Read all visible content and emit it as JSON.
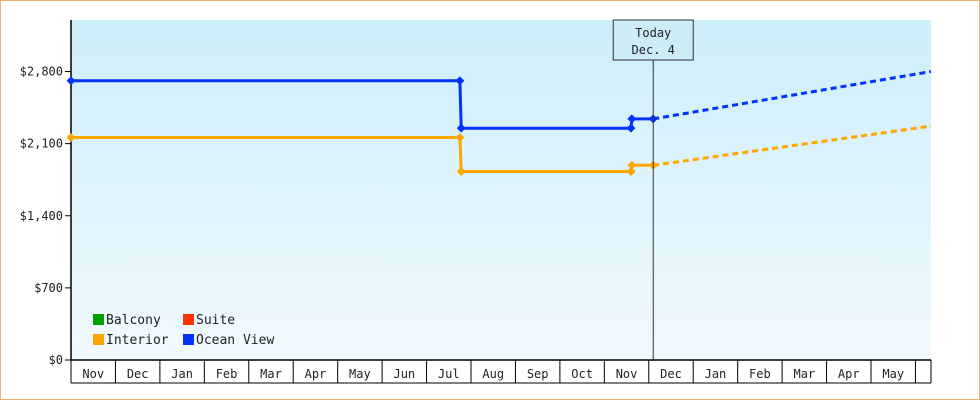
{
  "chart_data": {
    "type": "line",
    "y_ticks": [
      {
        "value": 0,
        "label": "$0"
      },
      {
        "value": 700,
        "label": "$700"
      },
      {
        "value": 1400,
        "label": "$1,400"
      },
      {
        "value": 2100,
        "label": "$2,100"
      },
      {
        "value": 2800,
        "label": "$2,800"
      }
    ],
    "ylim": [
      0,
      3300
    ],
    "categories": [
      "Nov",
      "Dec",
      "Jan",
      "Feb",
      "Mar",
      "Apr",
      "May",
      "Jun",
      "Jul",
      "Aug",
      "Sep",
      "Oct",
      "Nov",
      "Dec",
      "Jan",
      "Feb",
      "Mar",
      "Apr",
      "May"
    ],
    "xlim": [
      0,
      19.35
    ],
    "today": {
      "line1": "Today",
      "line2": "Dec. 4",
      "x": 13.1
    },
    "legend": [
      {
        "name": "Balcony",
        "color": "#00a000"
      },
      {
        "name": "Suite",
        "color": "#ff3300"
      },
      {
        "name": "Interior",
        "color": "#ffa500"
      },
      {
        "name": "Ocean View",
        "color": "#0033ff"
      }
    ],
    "series": [
      {
        "name": "Ocean View",
        "color": "#0033ff",
        "points": [
          [
            0,
            2710
          ],
          [
            8.75,
            2710
          ],
          [
            8.78,
            2250
          ],
          [
            12.6,
            2250
          ],
          [
            12.62,
            2340
          ],
          [
            13.1,
            2340
          ]
        ],
        "markers": [
          [
            0,
            2710
          ],
          [
            8.75,
            2710
          ],
          [
            8.78,
            2250
          ],
          [
            12.6,
            2250
          ],
          [
            12.62,
            2340
          ],
          [
            13.1,
            2340
          ]
        ],
        "forecast": [
          [
            13.1,
            2340
          ],
          [
            19.35,
            2800
          ]
        ]
      },
      {
        "name": "Interior",
        "color": "#ffa500",
        "points": [
          [
            0,
            2160
          ],
          [
            8.75,
            2160
          ],
          [
            8.78,
            1830
          ],
          [
            12.6,
            1830
          ],
          [
            12.62,
            1890
          ],
          [
            13.1,
            1890
          ]
        ],
        "markers": [
          [
            0,
            2160
          ],
          [
            8.75,
            2160
          ],
          [
            8.78,
            1830
          ],
          [
            12.6,
            1830
          ],
          [
            12.62,
            1890
          ],
          [
            13.1,
            1890
          ]
        ],
        "forecast": [
          [
            13.1,
            1890
          ],
          [
            19.35,
            2270
          ]
        ]
      }
    ]
  }
}
